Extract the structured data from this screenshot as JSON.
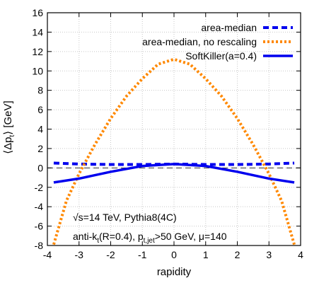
{
  "chart_data": {
    "type": "line",
    "xlabel": "rapidity",
    "ylabel": "⟨Δp",
    "ylabel_sub": "t",
    "ylabel_tail": "⟩ [GeV]",
    "xlim": [
      -4,
      4
    ],
    "ylim": [
      -8,
      16
    ],
    "x_ticks": [
      -4,
      -3,
      -2,
      -1,
      0,
      1,
      2,
      3,
      4
    ],
    "y_ticks": [
      -8,
      -6,
      -4,
      -2,
      0,
      2,
      4,
      6,
      8,
      10,
      12,
      14,
      16
    ],
    "grid": true,
    "reference_line": 0,
    "legend_position": "top-right",
    "series": [
      {
        "name": "area-median",
        "color": "#0000ee",
        "style": "dashed",
        "x": [
          -3.8,
          -3.0,
          -2.0,
          -1.0,
          0.0,
          1.0,
          2.0,
          3.0,
          3.8
        ],
        "y": [
          0.5,
          0.4,
          0.35,
          0.35,
          0.4,
          0.35,
          0.35,
          0.4,
          0.5
        ]
      },
      {
        "name": "area-median, no rescaling",
        "color": "#ff8800",
        "style": "dotted",
        "x": [
          -3.8,
          -3.4,
          -3.0,
          -2.5,
          -2.0,
          -1.5,
          -1.0,
          -0.5,
          0.0,
          0.5,
          1.0,
          1.5,
          2.0,
          2.5,
          3.0,
          3.4,
          3.8
        ],
        "y": [
          -7.9,
          -3.4,
          -0.6,
          2.4,
          5.1,
          7.4,
          9.2,
          10.7,
          11.2,
          10.7,
          9.2,
          7.4,
          5.1,
          2.4,
          -0.6,
          -3.4,
          -7.9
        ]
      },
      {
        "name": "SoftKiller(a=0.4)",
        "color": "#0000ee",
        "style": "solid",
        "x": [
          -3.8,
          -3.0,
          -2.0,
          -1.0,
          0.0,
          1.0,
          2.0,
          3.0,
          3.8
        ],
        "y": [
          -1.5,
          -1.1,
          -0.4,
          0.2,
          0.4,
          0.2,
          -0.4,
          -1.1,
          -1.5
        ]
      }
    ],
    "annotations": {
      "line1": "√s=14 TeV, Pythia8(4C)",
      "line2_a": "anti-k",
      "line2_a_sub": "t",
      "line2_b": "(R=0.4), p",
      "line2_b_sub": "t,jet",
      "line2_c": ">50 GeV, μ=140"
    }
  }
}
